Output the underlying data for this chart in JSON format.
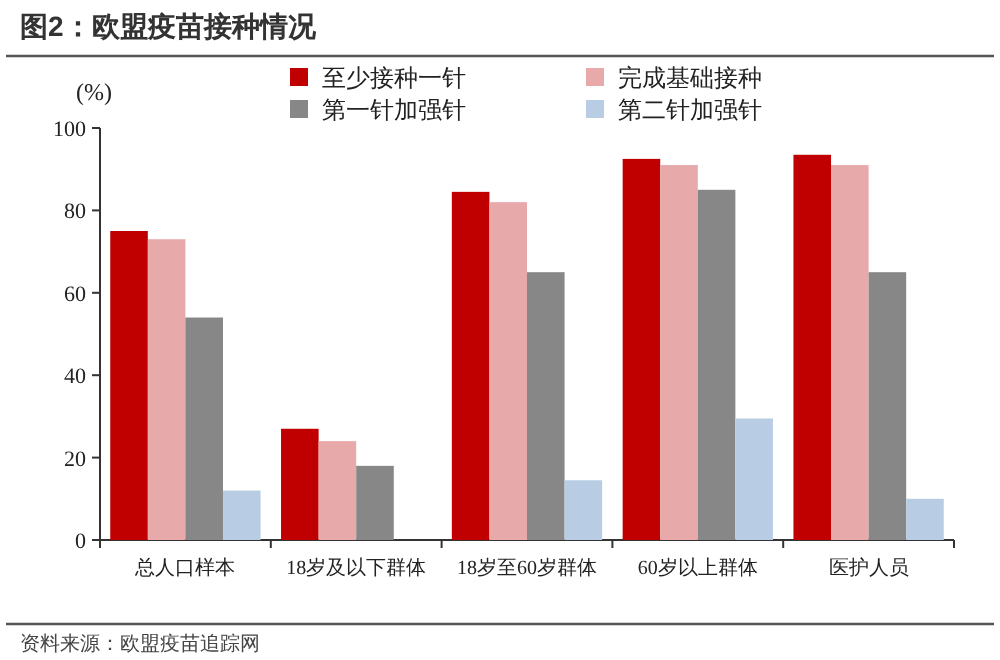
{
  "chart_data": {
    "type": "bar",
    "title": "图2：欧盟疫苗接种情况",
    "ylabel": "(%)",
    "categories": [
      "总人口样本",
      "18岁及以下群体",
      "18岁至60岁群体",
      "60岁以上群体",
      "医护人员"
    ],
    "series": [
      {
        "name": "至少接种一针",
        "color": "#c00000",
        "values": [
          75,
          27,
          84.5,
          92.5,
          93.5
        ]
      },
      {
        "name": "完成基础接种",
        "color": "#e8a9aa",
        "values": [
          73,
          24,
          82,
          91,
          91
        ]
      },
      {
        "name": "第一针加强针",
        "color": "#878787",
        "values": [
          54,
          18,
          65,
          85,
          65
        ]
      },
      {
        "name": "第二针加强针",
        "color": "#b8cde4",
        "values": [
          12,
          null,
          14.5,
          29.5,
          10
        ]
      }
    ],
    "ylim": [
      0,
      100
    ],
    "yticks": [
      0,
      20,
      40,
      60,
      80,
      100
    ],
    "grid": false,
    "legend": "top",
    "annotations": [
      "资料来源：欧盟疫苗追踪网"
    ]
  }
}
